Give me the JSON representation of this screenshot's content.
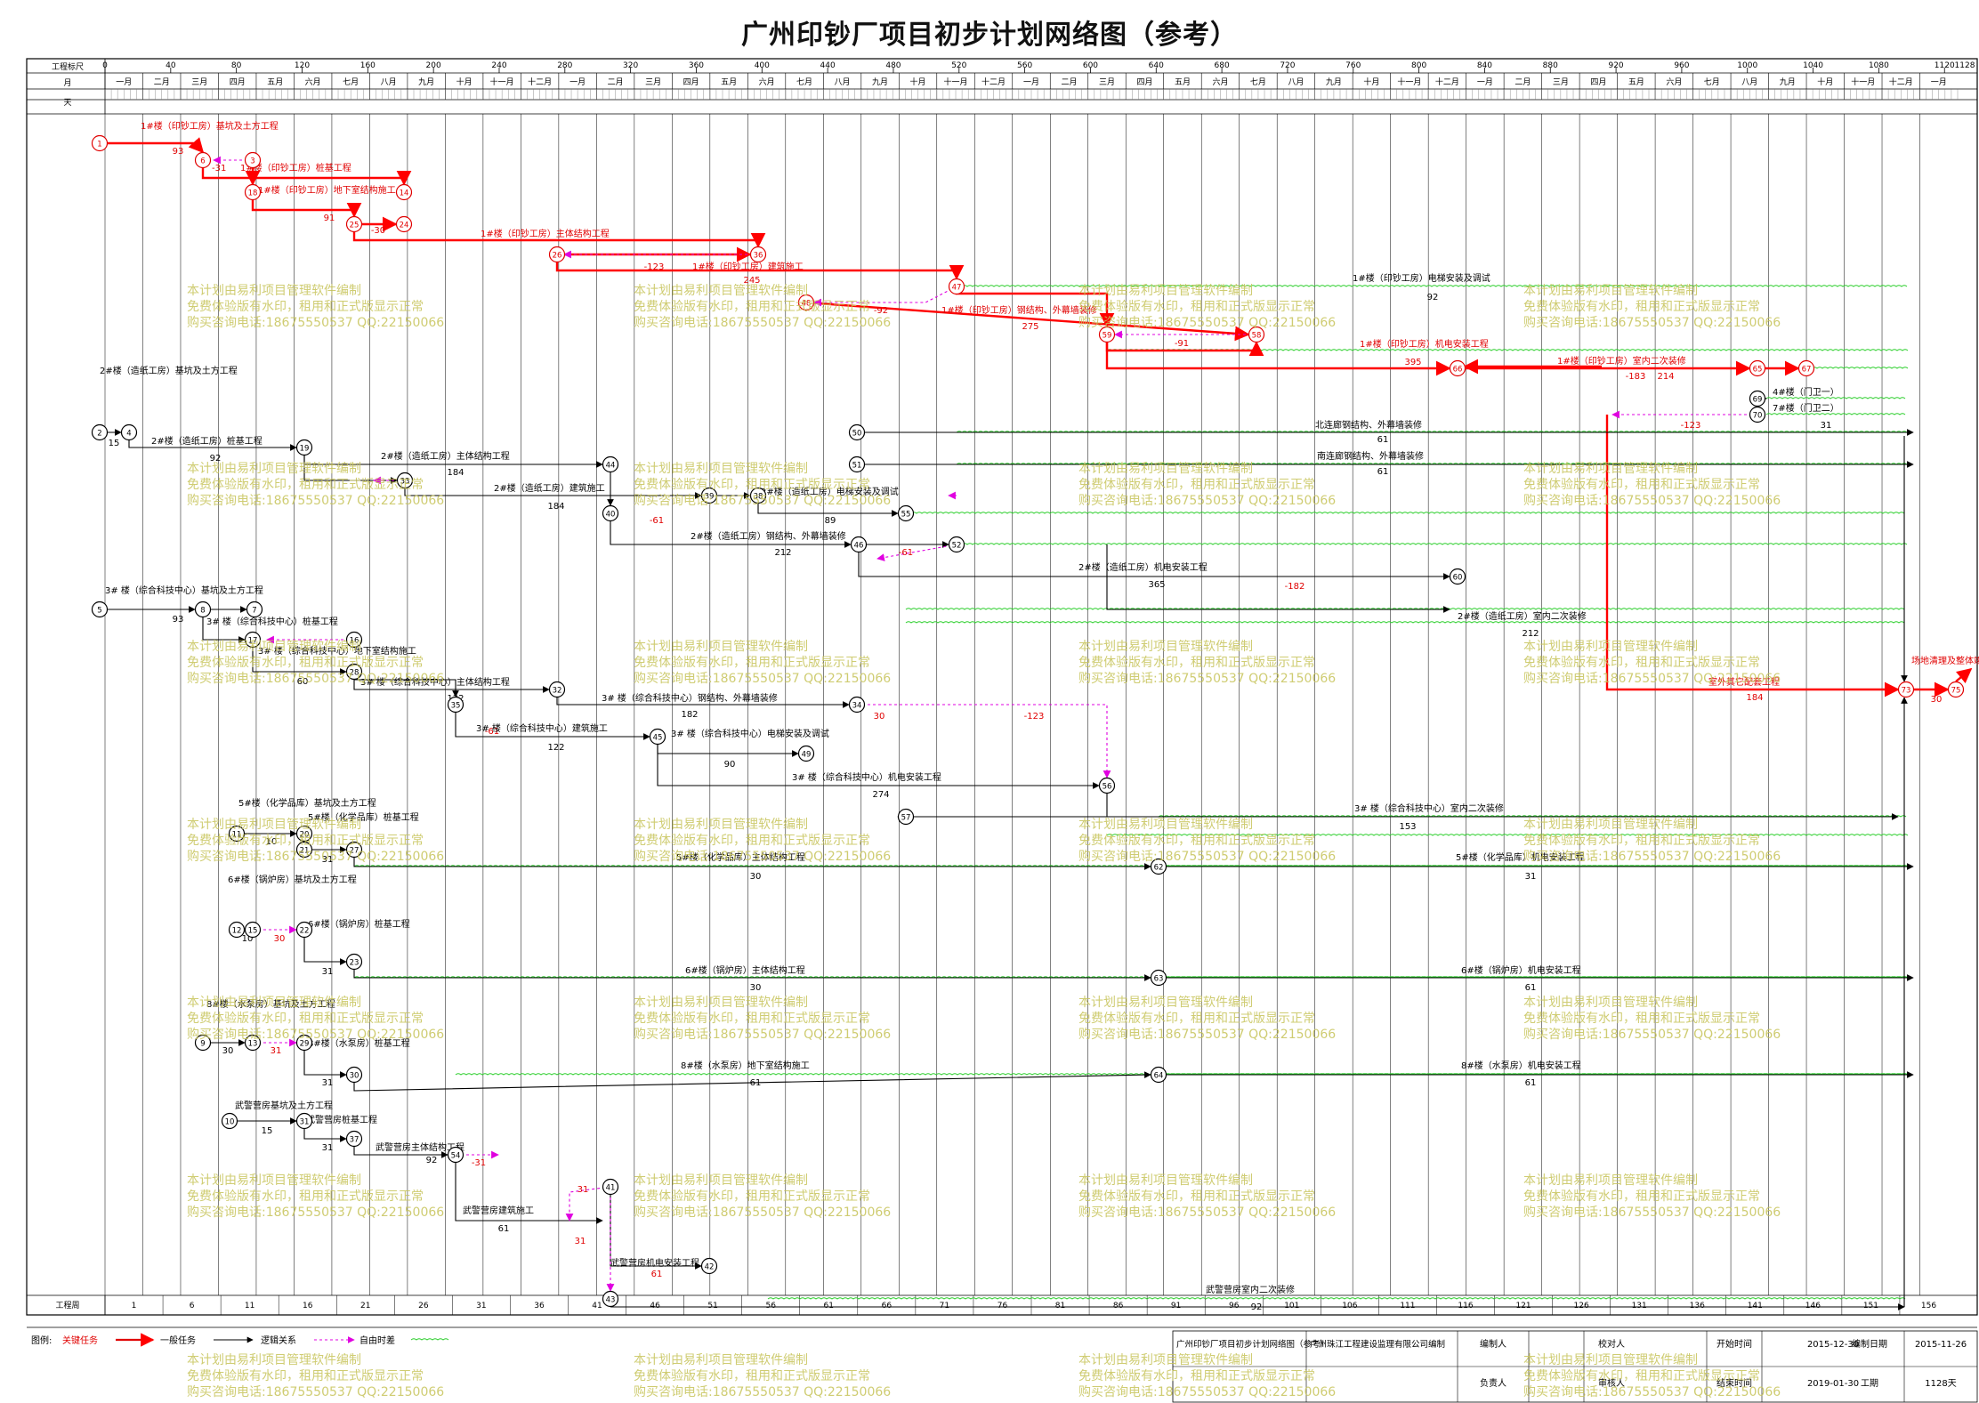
{
  "title": "广州印钞厂项目初步计划网络图（参考）",
  "timescale": {
    "label_scale": "工程标尺",
    "label_month": "月",
    "label_day": "天",
    "label_week": "工程周",
    "scale_ticks": [
      "0",
      "40",
      "80",
      "120",
      "160",
      "200",
      "240",
      "280",
      "320",
      "360",
      "400",
      "440",
      "480",
      "520",
      "560",
      "600",
      "640",
      "680",
      "720",
      "760",
      "800",
      "840",
      "880",
      "920",
      "960",
      "1000",
      "1040",
      "1080",
      "1120"
    ],
    "scale_end": "1128",
    "months": [
      "一月",
      "二月",
      "三月",
      "四月",
      "五月",
      "六月",
      "七月",
      "八月",
      "九月",
      "十月",
      "十一月",
      "十二月",
      "一月",
      "二月",
      "三月",
      "四月",
      "五月",
      "六月",
      "七月",
      "八月",
      "九月",
      "十月",
      "十一月",
      "十二月",
      "一月",
      "二月",
      "三月",
      "四月",
      "五月",
      "六月",
      "七月",
      "八月",
      "九月",
      "十月",
      "十一月",
      "十二月",
      "一月",
      "二月",
      "三月",
      "四月",
      "五月",
      "六月",
      "七月",
      "八月",
      "九月",
      "十月",
      "十一月",
      "十二月",
      "一月"
    ],
    "weeks": [
      "1",
      "6",
      "11",
      "16",
      "21",
      "26",
      "31",
      "36",
      "41",
      "46",
      "51",
      "56",
      "61",
      "66",
      "71",
      "76",
      "81",
      "86",
      "91",
      "96",
      "101",
      "106",
      "111",
      "116",
      "121",
      "126",
      "131",
      "136",
      "141",
      "146",
      "151",
      "156"
    ]
  },
  "activities": [
    {
      "text": "1#楼（印钞工房）基坑及土方工程",
      "color": "red"
    },
    {
      "text": "93",
      "color": "red"
    },
    {
      "text": "-31",
      "color": "red"
    },
    {
      "text": "1#楼（印钞工房）桩基工程",
      "color": "red"
    },
    {
      "text": "1#楼（印钞工房）地下室结构施工",
      "color": "red"
    },
    {
      "text": "91",
      "color": "red"
    },
    {
      "text": "-30",
      "color": "red"
    },
    {
      "text": "1#楼（印钞工房）主体结构工程",
      "color": "red"
    },
    {
      "text": "245",
      "color": "red"
    },
    {
      "text": "-123",
      "color": "red"
    },
    {
      "text": "1#楼（印钞工房）建筑施工",
      "color": "red"
    },
    {
      "text": "1#楼（印钞工房）电梯安装及调试",
      "color": "black"
    },
    {
      "text": "92",
      "color": "black"
    },
    {
      "text": "1#楼（印钞工房）钢结构、外幕墙装修",
      "color": "red"
    },
    {
      "text": "-92",
      "color": "red"
    },
    {
      "text": "275",
      "color": "red"
    },
    {
      "text": "-91",
      "color": "red"
    },
    {
      "text": "1#楼（印钞工房）机电安装工程",
      "color": "red"
    },
    {
      "text": "395",
      "color": "red"
    },
    {
      "text": "1#楼（印钞工房）室内二次装修",
      "color": "red"
    },
    {
      "text": "-183",
      "color": "red"
    },
    {
      "text": "214",
      "color": "red"
    },
    {
      "text": "4#楼（门卫一）",
      "color": "black"
    },
    {
      "text": "7#楼（门卫二）",
      "color": "black"
    },
    {
      "text": "31",
      "color": "black"
    },
    {
      "text": "-123",
      "color": "red"
    },
    {
      "text": "2#楼（造纸工房）基坑及土方工程",
      "color": "black"
    },
    {
      "text": "15",
      "color": "black"
    },
    {
      "text": "2#楼（造纸工房）桩基工程",
      "color": "black"
    },
    {
      "text": "92",
      "color": "black"
    },
    {
      "text": "2#楼（造纸工房）主体结构工程",
      "color": "black"
    },
    {
      "text": "184",
      "color": "black"
    },
    {
      "text": "2#楼（造纸工房）建筑施工",
      "color": "black"
    },
    {
      "text": "184",
      "color": "black"
    },
    {
      "text": "北连廊钢结构、外幕墙装修",
      "color": "black"
    },
    {
      "text": "61",
      "color": "black"
    },
    {
      "text": "南连廊钢结构、外幕墙装修",
      "color": "black"
    },
    {
      "text": "61",
      "color": "black"
    },
    {
      "text": "2#楼（造纸工房）电梯安装及调试",
      "color": "black"
    },
    {
      "text": "89",
      "color": "black"
    },
    {
      "text": "-61",
      "color": "red"
    },
    {
      "text": "2#楼（造纸工房）钢结构、外幕墙装修",
      "color": "black"
    },
    {
      "text": "212",
      "color": "black"
    },
    {
      "text": "-61",
      "color": "red"
    },
    {
      "text": "2#楼（造纸工房）机电安装工程",
      "color": "black"
    },
    {
      "text": "365",
      "color": "black"
    },
    {
      "text": "-182",
      "color": "red"
    },
    {
      "text": "2#楼（造纸工房）室内二次装修",
      "color": "black"
    },
    {
      "text": "212",
      "color": "black"
    },
    {
      "text": "3# 楼（综合科技中心）基坑及土方工程",
      "color": "black"
    },
    {
      "text": "93",
      "color": "black"
    },
    {
      "text": "3# 楼（综合科技中心）桩基工程",
      "color": "black"
    },
    {
      "text": "3# 楼（综合科技中心）地下室结构施工",
      "color": "black"
    },
    {
      "text": "60",
      "color": "black"
    },
    {
      "text": "3# 楼（综合科技中心）主体结构工程",
      "color": "black"
    },
    {
      "text": "122",
      "color": "black"
    },
    {
      "text": "3# 楼（综合科技中心）钢结构、外幕墙装修",
      "color": "black"
    },
    {
      "text": "182",
      "color": "black"
    },
    {
      "text": "30",
      "color": "red"
    },
    {
      "text": "-123",
      "color": "red"
    },
    {
      "text": "-61",
      "color": "red"
    },
    {
      "text": "3# 楼（综合科技中心）建筑施工",
      "color": "black"
    },
    {
      "text": "122",
      "color": "black"
    },
    {
      "text": "3# 楼（综合科技中心）电梯安装及调试",
      "color": "black"
    },
    {
      "text": "90",
      "color": "black"
    },
    {
      "text": "3# 楼（综合科技中心）机电安装工程",
      "color": "black"
    },
    {
      "text": "274",
      "color": "black"
    },
    {
      "text": "3# 楼（综合科技中心）室内二次装修",
      "color": "black"
    },
    {
      "text": "153",
      "color": "black"
    },
    {
      "text": "场地清理及整体竣工验收",
      "color": "red"
    },
    {
      "text": "室外其它配套工程",
      "color": "red"
    },
    {
      "text": "184",
      "color": "red"
    },
    {
      "text": "30",
      "color": "red"
    },
    {
      "text": "5#楼（化学品库）基坑及土方工程",
      "color": "black"
    },
    {
      "text": "10",
      "color": "black"
    },
    {
      "text": "5#楼（化学品库）桩基工程",
      "color": "black"
    },
    {
      "text": "31",
      "color": "black"
    },
    {
      "text": "5#楼（化学品库）主体结构工程",
      "color": "black"
    },
    {
      "text": "30",
      "color": "black"
    },
    {
      "text": "5#楼（化学品库）机电安装工程",
      "color": "black"
    },
    {
      "text": "31",
      "color": "black"
    },
    {
      "text": "6#楼（锅炉房）基坑及土方工程",
      "color": "black"
    },
    {
      "text": "10",
      "color": "black"
    },
    {
      "text": "30",
      "color": "red"
    },
    {
      "text": "6#楼（锅炉房）桩基工程",
      "color": "black"
    },
    {
      "text": "31",
      "color": "black"
    },
    {
      "text": "6#楼（锅炉房）主体结构工程",
      "color": "black"
    },
    {
      "text": "30",
      "color": "black"
    },
    {
      "text": "6#楼（锅炉房）机电安装工程",
      "color": "black"
    },
    {
      "text": "61",
      "color": "black"
    },
    {
      "text": "8#楼（水泵房）基坑及土方工程",
      "color": "black"
    },
    {
      "text": "30",
      "color": "black"
    },
    {
      "text": "31",
      "color": "red"
    },
    {
      "text": "8#楼（水泵房）桩基工程",
      "color": "black"
    },
    {
      "text": "31",
      "color": "black"
    },
    {
      "text": "8#楼（水泵房）地下室结构施工",
      "color": "black"
    },
    {
      "text": "61",
      "color": "black"
    },
    {
      "text": "8#楼（水泵房）机电安装工程",
      "color": "black"
    },
    {
      "text": "61",
      "color": "black"
    },
    {
      "text": "武警营房基坑及土方工程",
      "color": "black"
    },
    {
      "text": "15",
      "color": "black"
    },
    {
      "text": "武警营房桩基工程",
      "color": "black"
    },
    {
      "text": "31",
      "color": "black"
    },
    {
      "text": "武警营房主体结构工程",
      "color": "black"
    },
    {
      "text": "92",
      "color": "black"
    },
    {
      "text": "-31",
      "color": "red"
    },
    {
      "text": "31",
      "color": "red"
    },
    {
      "text": "武警营房建筑施工",
      "color": "black"
    },
    {
      "text": "61",
      "color": "black"
    },
    {
      "text": "31",
      "color": "red"
    },
    {
      "text": "武警营房机电安装工程",
      "color": "black"
    },
    {
      "text": "61",
      "color": "red"
    },
    {
      "text": "武警营房室内二次装修",
      "color": "black"
    },
    {
      "text": "92",
      "color": "black"
    }
  ],
  "nodes": [
    "1",
    "3",
    "6",
    "18",
    "14",
    "25",
    "24",
    "36",
    "26",
    "47",
    "48",
    "58",
    "59",
    "66",
    "65",
    "67",
    "69",
    "70",
    "2",
    "4",
    "19",
    "44",
    "33",
    "39",
    "38",
    "40",
    "55",
    "50",
    "51",
    "52",
    "46",
    "60",
    "5",
    "8",
    "7",
    "17",
    "16",
    "28",
    "32",
    "35",
    "34",
    "45",
    "49",
    "56",
    "57",
    "73",
    "75",
    "11",
    "20",
    "21",
    "27",
    "62",
    "12",
    "15",
    "22",
    "23",
    "63",
    "9",
    "13",
    "29",
    "30",
    "64",
    "10",
    "31",
    "37",
    "41",
    "42",
    "43",
    "54"
  ],
  "legend": {
    "label": "图例:",
    "critical": "关键任务",
    "normal": "一般任务",
    "logic": "逻辑关系",
    "float": "自由时差"
  },
  "title_block": {
    "plan_name": "广州印钞厂项目初步计划网络图（参考）",
    "company": "广州珠江工程建设监理有限公司编制",
    "prepared_by_label": "编制人",
    "checked_by_label": "校对人",
    "start_label": "开始时间",
    "start_value": "2015-12-30",
    "date_label": "编制日期",
    "date_value": "2015-11-26",
    "manager_label": "负责人",
    "reviewer_label": "审核人",
    "end_label": "结束时间",
    "end_value": "2019-01-30",
    "duration_label": "工期",
    "duration_value": "1128天"
  },
  "watermark": [
    "本计划由易利项目管理软件编制",
    "免费体验版有水印，租用和正式版显示正常",
    "购买咨询电话:18675550537 QQ:22150066"
  ]
}
